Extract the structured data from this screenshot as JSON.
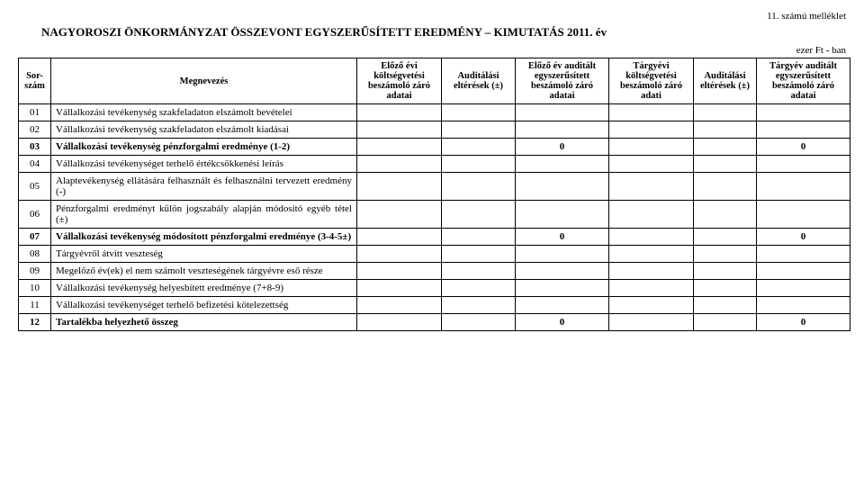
{
  "header": {
    "annex": "11. számú melléklet",
    "title": "NAGYOROSZI ÖNKORMÁNYZAT ÖSSZEVONT EGYSZERŰSÍTETT EREDMÉNY – KIMUTATÁS 2011. év",
    "unit": "ezer Ft - ban"
  },
  "columns": {
    "c0": "Sor-\nszám",
    "c1": "Megnevezés",
    "c2": "Előző évi költségvetési beszámoló záró adatai",
    "c3": "Auditálási eltérések (±)",
    "c4": "Előző év auditált egyszerűsített beszámoló záró adatai",
    "c5": "Tárgyévi költségvetési beszámoló záró adati",
    "c6": "Auditálási eltérések (±)",
    "c7": "Tárgyév auditált egyszerűsített beszámoló záró adatai"
  },
  "rows": [
    {
      "n": "01",
      "label": "Vállalkozási tevékenység szakfeladaton elszámolt bevételei",
      "bold": false,
      "v": [
        "",
        "",
        "",
        "",
        "",
        ""
      ]
    },
    {
      "n": "02",
      "label": "Vállalkozási tevékenység szakfeladaton elszámolt kiadásai",
      "bold": false,
      "v": [
        "",
        "",
        "",
        "",
        "",
        ""
      ]
    },
    {
      "n": "03",
      "label": "Vállalkozási tevékenység pénzforgalmi eredménye (1-2)",
      "bold": true,
      "v": [
        "",
        "",
        "0",
        "",
        "",
        "0"
      ]
    },
    {
      "n": "04",
      "label": "Vállalkozási tevékenységet terhelő értékcsökkenési leírás",
      "bold": false,
      "v": [
        "",
        "",
        "",
        "",
        "",
        ""
      ]
    },
    {
      "n": "05",
      "label": "Alaptevékenység ellátására felhasznált és felhasználni tervezett eredmény (-)",
      "bold": false,
      "v": [
        "",
        "",
        "",
        "",
        "",
        ""
      ]
    },
    {
      "n": "06",
      "label": "Pénzforgalmi eredményt külön jogszabály alapján módosító egyéb tétel (±)",
      "bold": false,
      "v": [
        "",
        "",
        "",
        "",
        "",
        ""
      ]
    },
    {
      "n": "07",
      "label": "Vállalkozási tevékenység módosított pénzforgalmi eredménye (3-4-5±)",
      "bold": true,
      "v": [
        "",
        "",
        "0",
        "",
        "",
        "0"
      ]
    },
    {
      "n": "08",
      "label": "Tárgyévről átvitt veszteség",
      "bold": false,
      "v": [
        "",
        "",
        "",
        "",
        "",
        ""
      ]
    },
    {
      "n": "09",
      "label": "Megelőző év(ek) el nem számolt veszteségének tárgyévre eső része",
      "bold": false,
      "v": [
        "",
        "",
        "",
        "",
        "",
        ""
      ]
    },
    {
      "n": "10",
      "label": "Vállalkozási tevékenység helyesbített eredménye (7+8-9)",
      "bold": false,
      "v": [
        "",
        "",
        "",
        "",
        "",
        ""
      ]
    },
    {
      "n": "11",
      "label": "Vállalkozási tevékenységet terhelő befizetési kötelezettség",
      "bold": false,
      "v": [
        "",
        "",
        "",
        "",
        "",
        ""
      ]
    },
    {
      "n": "12",
      "label": "Tartalékba helyezhető összeg",
      "bold": true,
      "v": [
        "",
        "",
        "0",
        "",
        "",
        "0"
      ]
    }
  ]
}
